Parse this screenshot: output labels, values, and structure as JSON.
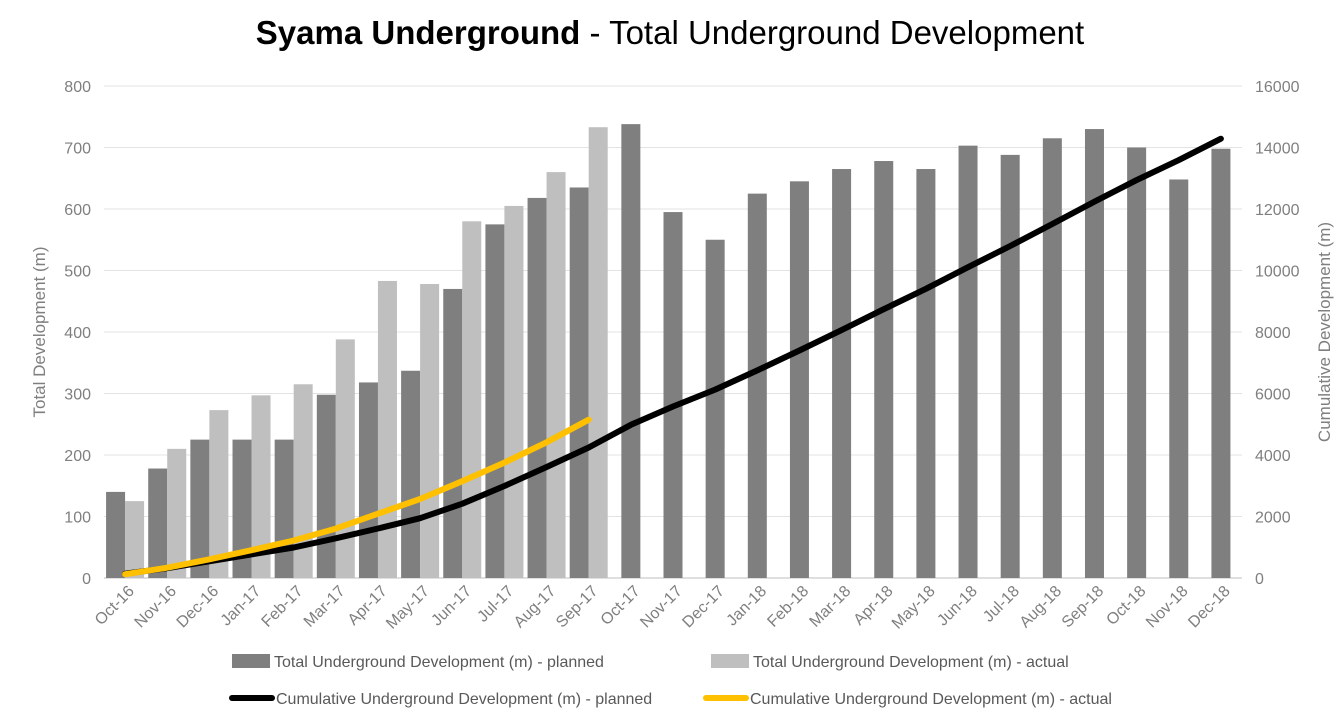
{
  "chart_data": {
    "type": "bar",
    "title_bold": "Syama Underground",
    "title_rest": " - Total Underground Development",
    "ylabel_left": "Total Development (m)",
    "ylabel_right": "Cumulative Development (m)",
    "ylim_left": [
      0,
      800
    ],
    "ylim_right": [
      0,
      16000
    ],
    "yticks_left": [
      "0",
      "100",
      "200",
      "300",
      "400",
      "500",
      "600",
      "700",
      "800"
    ],
    "yticks_right": [
      "0",
      "2000",
      "4000",
      "6000",
      "8000",
      "10000",
      "12000",
      "14000",
      "16000"
    ],
    "grid": true,
    "legend_position": "bottom",
    "categories": [
      "Oct-16",
      "Nov-16",
      "Dec-16",
      "Jan-17",
      "Feb-17",
      "Mar-17",
      "Apr-17",
      "May-17",
      "Jun-17",
      "Jul-17",
      "Aug-17",
      "Sep-17",
      "Oct-17",
      "Nov-17",
      "Dec-17",
      "Jan-18",
      "Feb-18",
      "Mar-18",
      "Apr-18",
      "May-18",
      "Jun-18",
      "Jul-18",
      "Aug-18",
      "Sep-18",
      "Oct-18",
      "Nov-18",
      "Dec-18"
    ],
    "series": [
      {
        "name": "Total Underground Development (m) - planned",
        "type": "bar",
        "axis": "left",
        "color": "#7f7f7f",
        "values": [
          140,
          178,
          225,
          225,
          225,
          298,
          318,
          337,
          470,
          575,
          618,
          635,
          738,
          595,
          550,
          625,
          645,
          665,
          678,
          665,
          703,
          688,
          715,
          730,
          700,
          648,
          698
        ]
      },
      {
        "name": "Total Underground Development (m) - actual",
        "type": "bar",
        "axis": "left",
        "color": "#bfbfbf",
        "values": [
          125,
          210,
          273,
          297,
          315,
          388,
          483,
          478,
          580,
          605,
          660,
          733,
          null,
          null,
          null,
          null,
          null,
          null,
          null,
          null,
          null,
          null,
          null,
          null,
          null,
          null,
          null
        ]
      },
      {
        "name": "Cumulative Underground Development (m) - planned",
        "type": "line",
        "axis": "right",
        "color": "#000000",
        "values": [
          140,
          318,
          543,
          768,
          993,
          1291,
          1609,
          1946,
          2416,
          2991,
          3609,
          4244,
          4982,
          5577,
          6127,
          6752,
          7397,
          8062,
          8740,
          9405,
          10108,
          10796,
          11511,
          12241,
          12941,
          13589,
          14287
        ]
      },
      {
        "name": "Cumulative Underground Development (m) - actual",
        "type": "line",
        "axis": "right",
        "color": "#ffc000",
        "values": [
          125,
          335,
          608,
          905,
          1220,
          1608,
          2091,
          2569,
          3149,
          3754,
          4414,
          5147,
          null,
          null,
          null,
          null,
          null,
          null,
          null,
          null,
          null,
          null,
          null,
          null,
          null,
          null,
          null
        ]
      }
    ]
  }
}
